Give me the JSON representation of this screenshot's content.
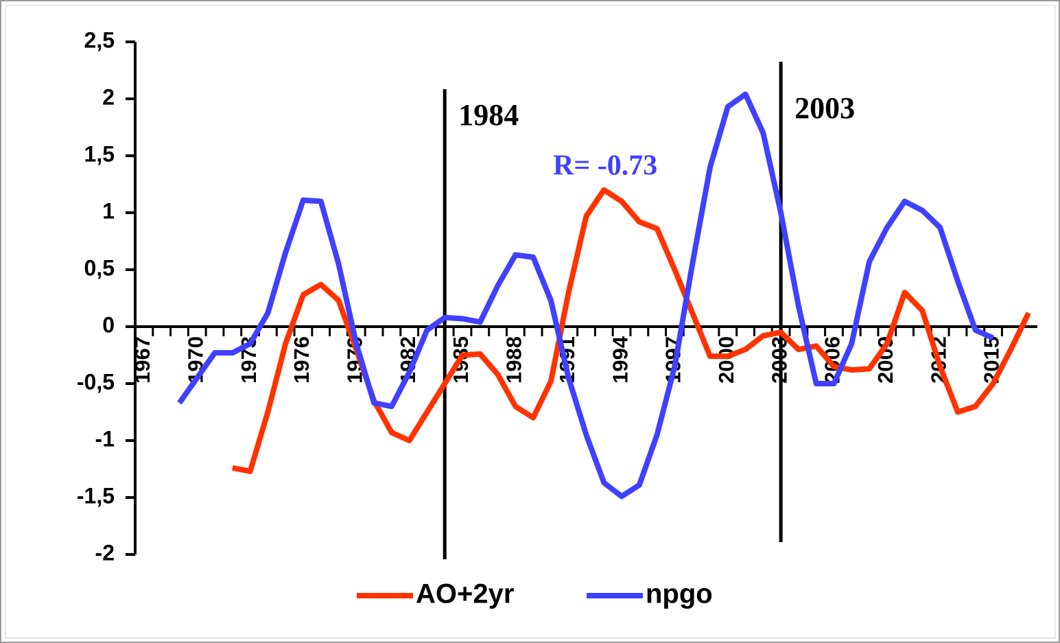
{
  "chart_data": {
    "type": "line",
    "x": [
      1967,
      1968,
      1969,
      1970,
      1971,
      1972,
      1973,
      1974,
      1975,
      1976,
      1977,
      1978,
      1979,
      1980,
      1981,
      1982,
      1983,
      1984,
      1985,
      1986,
      1987,
      1988,
      1989,
      1990,
      1991,
      1992,
      1993,
      1994,
      1995,
      1996,
      1997,
      1998,
      1999,
      2000,
      2001,
      2002,
      2003,
      2004,
      2005,
      2006,
      2007,
      2008,
      2009,
      2010,
      2011,
      2012,
      2013,
      2014,
      2015,
      2016,
      2017
    ],
    "series": [
      {
        "name": "AO+2yr",
        "color": "#ff3300",
        "values": [
          null,
          null,
          null,
          null,
          null,
          -1.24,
          -1.27,
          -0.75,
          -0.15,
          0.28,
          0.37,
          0.23,
          -0.2,
          -0.65,
          -0.93,
          -1.0,
          -0.75,
          -0.5,
          -0.25,
          -0.24,
          -0.42,
          -0.7,
          -0.8,
          -0.48,
          0.3,
          0.97,
          1.2,
          1.1,
          0.92,
          0.86,
          0.5,
          0.12,
          -0.26,
          -0.26,
          -0.2,
          -0.08,
          -0.05,
          -0.2,
          -0.17,
          -0.35,
          -0.38,
          -0.37,
          -0.15,
          0.3,
          0.14,
          -0.35,
          -0.75,
          -0.7,
          -0.5,
          -0.2,
          0.12
        ]
      },
      {
        "name": "npgo",
        "color": "#4040ff",
        "values": [
          null,
          null,
          -0.67,
          -0.45,
          -0.23,
          -0.23,
          -0.15,
          0.12,
          0.65,
          1.11,
          1.1,
          0.55,
          -0.15,
          -0.67,
          -0.7,
          -0.4,
          -0.03,
          0.08,
          0.07,
          0.04,
          0.36,
          0.63,
          0.61,
          0.23,
          -0.45,
          -0.95,
          -1.37,
          -1.49,
          -1.39,
          -0.95,
          -0.35,
          0.55,
          1.4,
          1.93,
          2.04,
          1.7,
          1.0,
          0.18,
          -0.5,
          -0.5,
          -0.15,
          0.57,
          0.87,
          1.1,
          1.02,
          0.87,
          0.4,
          -0.03,
          -0.1,
          null,
          null
        ]
      }
    ],
    "xlim": [
      1966.5,
      2017.5
    ],
    "xticks": [
      1967,
      1970,
      1973,
      1976,
      1979,
      1982,
      1985,
      1988,
      1991,
      1994,
      1997,
      2000,
      2003,
      2006,
      2009,
      2012,
      2015
    ],
    "ylim": [
      -2,
      2.5
    ],
    "yticks": [
      -2,
      {
        "value": -1.5,
        "label": "-1,5"
      },
      -1,
      {
        "value": -0.5,
        "label": "-0,5"
      },
      0,
      {
        "value": 0.5,
        "label": "0,5"
      },
      1,
      {
        "value": 1.5,
        "label": "1,5"
      },
      2,
      {
        "value": 2.5,
        "label": "2,5"
      }
    ],
    "annotations": [
      {
        "x": 1984,
        "label": "1984"
      },
      {
        "x": 2003,
        "label": "2003"
      }
    ],
    "correlation_label": "R= -0.73",
    "legend": "bottom"
  }
}
